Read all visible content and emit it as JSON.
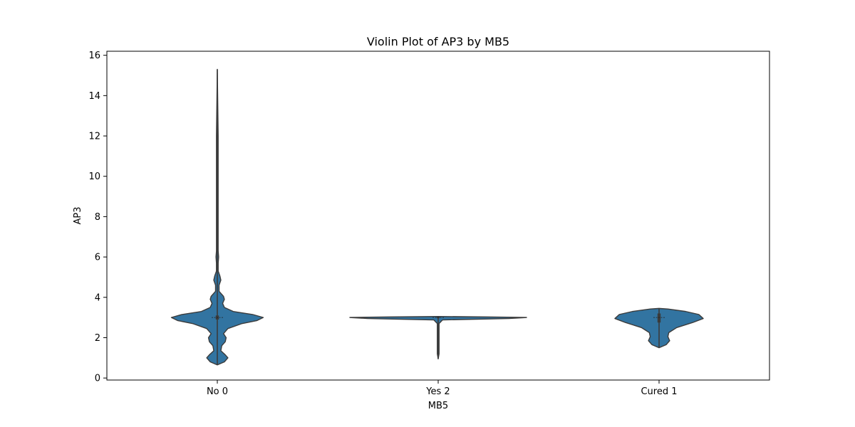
{
  "chart_data": {
    "type": "violin",
    "title": "Violin Plot of AP3 by MB5",
    "xlabel": "MB5",
    "ylabel": "AP3",
    "ylim": [
      -0.1,
      16.2
    ],
    "yticks": [
      0,
      2,
      4,
      6,
      8,
      10,
      12,
      14,
      16
    ],
    "categories": [
      "No 0",
      "Yes 2",
      "Cured 1"
    ],
    "grid": false,
    "colors": {
      "fill": "#3274a1",
      "edge": "#3b3b3b",
      "inner": "#3b3b3b"
    },
    "violins": [
      {
        "category": "No 0",
        "min": 0.65,
        "max": 15.3,
        "q1": 2.9,
        "median": 3.0,
        "q3": 3.1,
        "profile": [
          [
            0.65,
            0.0
          ],
          [
            0.8,
            0.08
          ],
          [
            1.0,
            0.12
          ],
          [
            1.15,
            0.09
          ],
          [
            1.35,
            0.04
          ],
          [
            1.6,
            0.05
          ],
          [
            1.8,
            0.09
          ],
          [
            2.0,
            0.1
          ],
          [
            2.2,
            0.07
          ],
          [
            2.45,
            0.12
          ],
          [
            2.7,
            0.28
          ],
          [
            2.85,
            0.45
          ],
          [
            3.0,
            0.52
          ],
          [
            3.15,
            0.4
          ],
          [
            3.3,
            0.18
          ],
          [
            3.5,
            0.08
          ],
          [
            3.7,
            0.06
          ],
          [
            3.9,
            0.08
          ],
          [
            4.05,
            0.07
          ],
          [
            4.3,
            0.02
          ],
          [
            4.6,
            0.02
          ],
          [
            4.85,
            0.04
          ],
          [
            5.05,
            0.03
          ],
          [
            5.3,
            0.01
          ],
          [
            5.7,
            0.01
          ],
          [
            6.0,
            0.015
          ],
          [
            6.3,
            0.005
          ],
          [
            8.0,
            0.005
          ],
          [
            12.0,
            0.005
          ],
          [
            15.3,
            0.0
          ]
        ]
      },
      {
        "category": "Yes 2",
        "min": 0.95,
        "max": 3.05,
        "q1": 2.97,
        "median": 3.0,
        "q3": 3.02,
        "profile": [
          [
            0.95,
            0.0
          ],
          [
            1.2,
            0.01
          ],
          [
            2.0,
            0.01
          ],
          [
            2.7,
            0.01
          ],
          [
            2.88,
            0.05
          ],
          [
            2.95,
            0.8
          ],
          [
            3.0,
            1.0
          ],
          [
            3.03,
            0.55
          ],
          [
            3.05,
            0.0
          ]
        ]
      },
      {
        "category": "Cured 1",
        "min": 1.5,
        "max": 3.45,
        "q1": 2.75,
        "median": 3.0,
        "q3": 3.2,
        "profile": [
          [
            1.5,
            0.0
          ],
          [
            1.65,
            0.08
          ],
          [
            1.85,
            0.12
          ],
          [
            2.05,
            0.1
          ],
          [
            2.25,
            0.11
          ],
          [
            2.5,
            0.2
          ],
          [
            2.75,
            0.38
          ],
          [
            2.95,
            0.5
          ],
          [
            3.15,
            0.45
          ],
          [
            3.3,
            0.3
          ],
          [
            3.42,
            0.1
          ],
          [
            3.45,
            0.0
          ]
        ]
      }
    ]
  }
}
